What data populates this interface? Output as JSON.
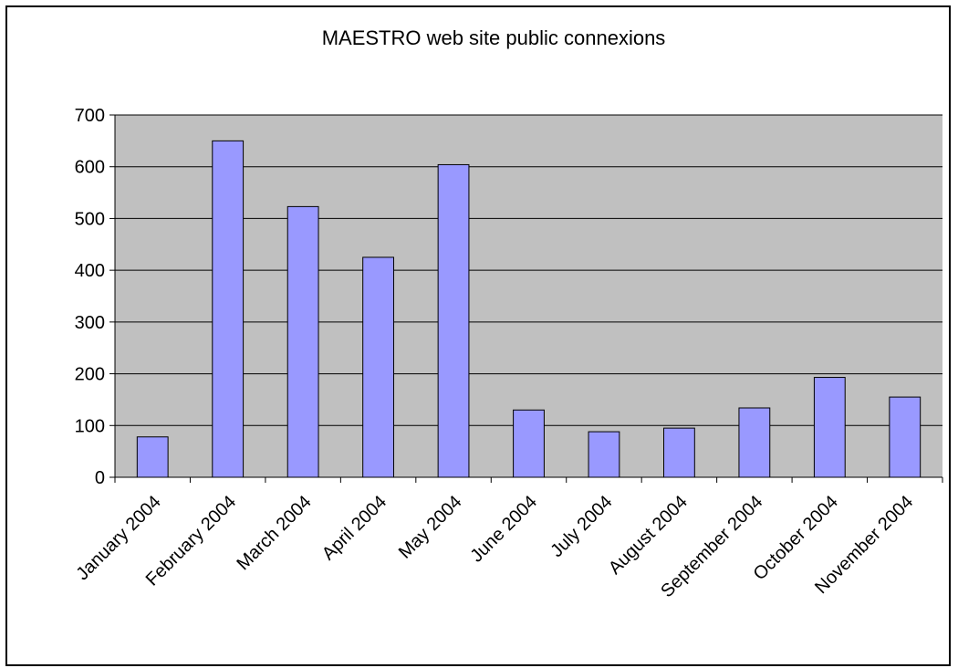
{
  "chart_data": {
    "type": "bar",
    "title": "MAESTRO web site public connexions",
    "xlabel": "",
    "ylabel": "",
    "categories": [
      "January 2004",
      "February 2004",
      "March 2004",
      "April 2004",
      "May 2004",
      "June 2004",
      "July 2004",
      "August 2004",
      "September 2004",
      "October 2004",
      "November 2004"
    ],
    "values": [
      78,
      650,
      523,
      425,
      604,
      130,
      88,
      95,
      134,
      193,
      155
    ],
    "ylim": [
      0,
      700
    ],
    "yticks": [
      0,
      100,
      200,
      300,
      400,
      500,
      600,
      700
    ],
    "grid": true,
    "legend": "none",
    "colors": {
      "plot_background": "#C0C0C0",
      "bar_fill": "#9999FF",
      "bar_stroke": "#000000",
      "gridline": "#000000"
    }
  }
}
